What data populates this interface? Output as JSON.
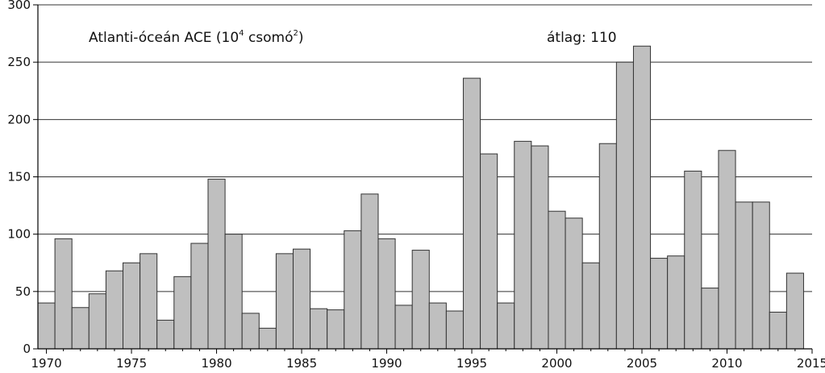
{
  "chart_data": {
    "type": "bar",
    "title": "",
    "xlabel": "",
    "ylabel": "",
    "annotation_title": {
      "text": "Atlanti-óceán ACE (10",
      "sup1": "4",
      "mid": " csomó",
      "sup2": "2",
      "end": ")"
    },
    "annotation_mean": "átlag: 110",
    "x": [
      1970,
      1971,
      1972,
      1973,
      1974,
      1975,
      1976,
      1977,
      1978,
      1979,
      1980,
      1981,
      1982,
      1983,
      1984,
      1985,
      1986,
      1987,
      1988,
      1989,
      1990,
      1991,
      1992,
      1993,
      1994,
      1995,
      1996,
      1997,
      1998,
      1999,
      2000,
      2001,
      2002,
      2003,
      2004,
      2005,
      2006,
      2007,
      2008,
      2009,
      2010,
      2011,
      2012,
      2013,
      2014
    ],
    "values": [
      40,
      96,
      36,
      48,
      68,
      75,
      83,
      25,
      63,
      92,
      148,
      100,
      31,
      18,
      83,
      87,
      35,
      34,
      103,
      135,
      96,
      38,
      86,
      40,
      33,
      236,
      170,
      40,
      181,
      177,
      120,
      114,
      75,
      179,
      250,
      264,
      79,
      81,
      155,
      53,
      173,
      128,
      128,
      32,
      66
    ],
    "ylim": [
      0,
      300
    ],
    "yticks": [
      0,
      50,
      100,
      150,
      200,
      250,
      300
    ],
    "xlim": [
      1969.5,
      2015
    ],
    "xticks": [
      1970,
      1975,
      1980,
      1985,
      1990,
      1995,
      2000,
      2005,
      2010,
      2015
    ],
    "grid": true,
    "colors": {
      "bar_fill": "#bfbfbf",
      "bar_stroke": "#333333",
      "grid": "#333333",
      "axis": "#000000"
    }
  }
}
